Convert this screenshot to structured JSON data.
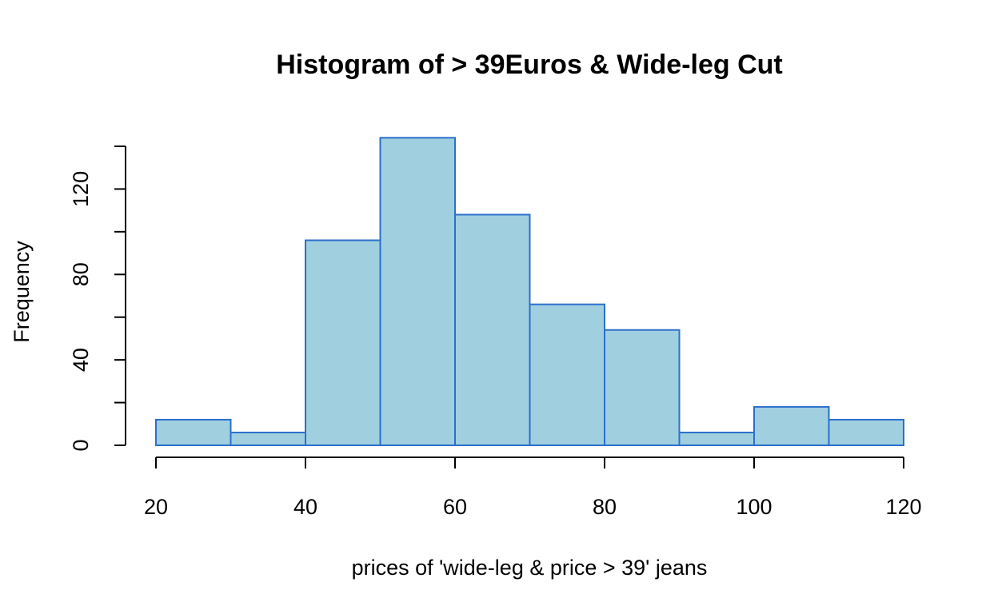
{
  "chart_data": {
    "type": "bar",
    "title": "Histogram of > 39Euros & Wide-leg Cut",
    "xlabel": "prices of 'wide-leg & price > 39' jeans",
    "ylabel": "Frequency",
    "bins": [
      {
        "from": 20,
        "to": 30,
        "count": 12
      },
      {
        "from": 30,
        "to": 40,
        "count": 6
      },
      {
        "from": 40,
        "to": 50,
        "count": 96
      },
      {
        "from": 50,
        "to": 60,
        "count": 144
      },
      {
        "from": 60,
        "to": 70,
        "count": 108
      },
      {
        "from": 70,
        "to": 80,
        "count": 66
      },
      {
        "from": 80,
        "to": 90,
        "count": 54
      },
      {
        "from": 90,
        "to": 100,
        "count": 6
      },
      {
        "from": 100,
        "to": 110,
        "count": 18
      },
      {
        "from": 110,
        "to": 120,
        "count": 12
      }
    ],
    "x_ticks": [
      20,
      40,
      60,
      80,
      100,
      120
    ],
    "y_ticks": [
      0,
      20,
      40,
      60,
      80,
      100,
      120,
      140
    ],
    "y_tick_labels": [
      {
        "value": 0,
        "label": "0"
      },
      {
        "value": 40,
        "label": "40"
      },
      {
        "value": 80,
        "label": "80"
      },
      {
        "value": 120,
        "label": "120"
      }
    ],
    "xlim": [
      20,
      120
    ],
    "ylim": [
      0,
      140
    ],
    "grid": false,
    "colors": {
      "fill": "#a0cfe0",
      "stroke": "#2c6fcc"
    }
  }
}
